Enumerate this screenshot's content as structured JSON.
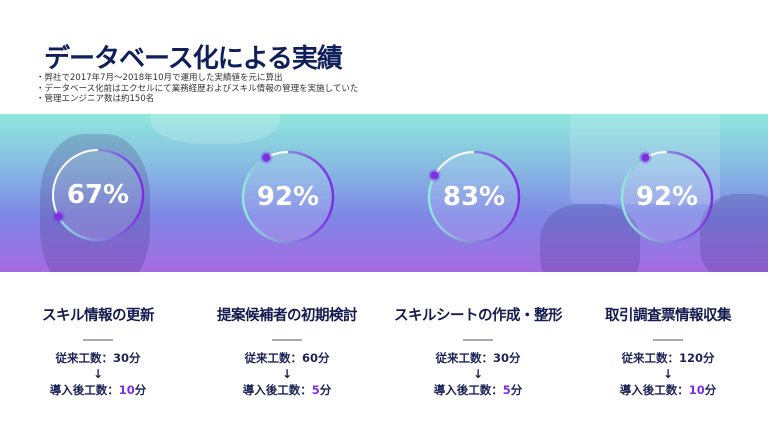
{
  "title": "データベース化による実績",
  "notes": [
    "・弊社で2017年7月～2018年10月で運用した実績値を元に算出",
    "・データベース化前はエクセルにて業務経歴およびスキル情報の管理を実施していた",
    "・管理エンジニア数は約150名"
  ],
  "colors": {
    "accent": "#7b2fe0",
    "title": "#0f1f5c",
    "ring_start": "#8fe8dc",
    "ring_end": "#7b2fe0"
  },
  "metrics": [
    {
      "percent": 67,
      "label": "67%",
      "heading": "スキル情報の更新",
      "before": "従来工数：30分",
      "arrow": "↓",
      "after_label": "導入後工数：",
      "after_value": "10",
      "after_unit": "分"
    },
    {
      "percent": 92,
      "label": "92%",
      "heading": "提案候補者の初期検討",
      "before": "従来工数：60分",
      "arrow": "↓",
      "after_label": "導入後工数：",
      "after_value": "5",
      "after_unit": "分"
    },
    {
      "percent": 83,
      "label": "83%",
      "heading": "スキルシートの作成・整形",
      "before": "従来工数：30分",
      "arrow": "↓",
      "after_label": "導入後工数：",
      "after_value": "5",
      "after_unit": "分"
    },
    {
      "percent": 92,
      "label": "92%",
      "heading": "取引調査票情報収集",
      "before": "従来工数：120分",
      "arrow": "↓",
      "after_label": "導入後工数：",
      "after_value": "10",
      "after_unit": "分"
    }
  ]
}
